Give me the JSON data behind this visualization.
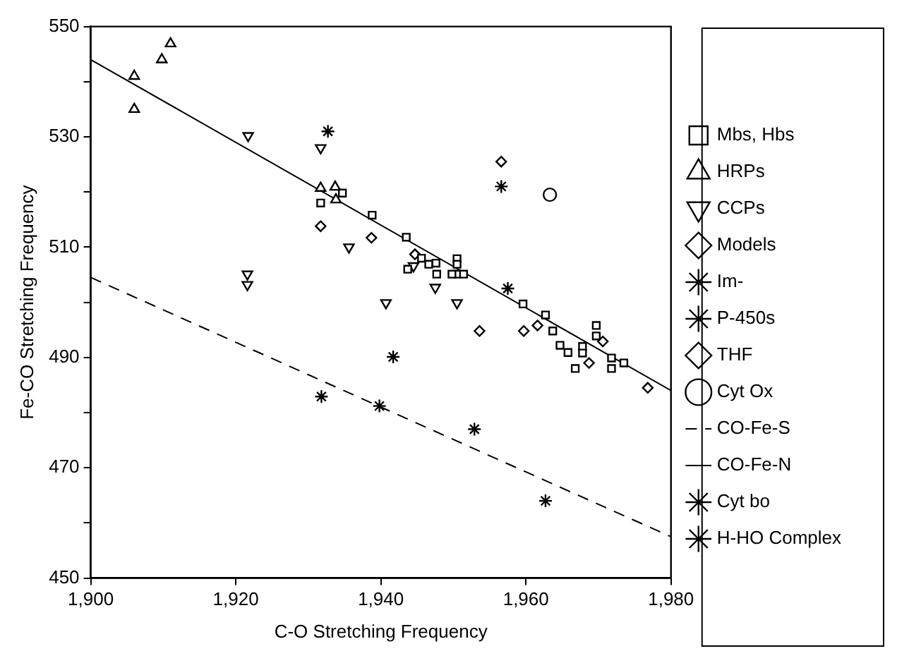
{
  "chart_data": {
    "type": "scatter",
    "xlabel": "C-O Stretching Frequency",
    "ylabel": "Fe-CO Stretching Frequency",
    "xlim": [
      1900,
      1980
    ],
    "xticks": [
      {
        "value": 1900,
        "label": "1,900"
      },
      {
        "value": 1920,
        "label": "1,920"
      },
      {
        "value": 1940,
        "label": "1,940"
      },
      {
        "value": 1960,
        "label": "1,960"
      },
      {
        "value": 1980,
        "label": "1,980"
      }
    ],
    "ylim": [
      450,
      550
    ],
    "yticks": [
      450,
      {
        "value": 460,
        "label": null
      },
      470,
      {
        "value": 480,
        "label": null
      },
      490,
      {
        "value": 500,
        "label": null
      },
      510,
      {
        "value": 520,
        "label": null
      },
      530,
      {
        "value": 540,
        "label": null
      },
      550
    ],
    "legend": "right",
    "series": [
      {
        "name": "Mbs, Hbs",
        "color": "#000000",
        "marker": "square",
        "x": [
          1934.7,
          1931.7,
          1938.8,
          1943.5,
          1943.7,
          1945.6,
          1946.6,
          1947.7,
          1947.6,
          1950.5,
          1950.5,
          1950.5,
          1951.4,
          1949.8,
          1959.6,
          1962.7,
          1963.7,
          1964.7,
          1965.8,
          1966.8,
          1967.8,
          1967.8,
          1969.7,
          1969.7,
          1971.8,
          1971.8,
          1973.5
        ],
        "values": [
          519.8,
          518,
          515.8,
          511.8,
          506,
          508,
          506.9,
          505.1,
          507.1,
          507.9,
          506.9,
          505.1,
          505.1,
          505.1,
          499.7,
          497.7,
          494.8,
          492.2,
          490.9,
          488,
          492,
          490.8,
          495.8,
          493.9,
          489.9,
          488,
          489
        ]
      },
      {
        "name": "HRPs",
        "color": "#000000",
        "marker": "triangle",
        "x": [
          1911,
          1909.8,
          1906,
          1906,
          1931.7,
          1933.7,
          1933.8
        ],
        "values": [
          546.9,
          544,
          541,
          535,
          520.7,
          520.9,
          518.6
        ]
      },
      {
        "name": "CCPs",
        "color": "#000000",
        "x": [
          1921.7,
          1921.6,
          1921.6,
          1931.7,
          1935.6,
          1940.7,
          1944.5,
          1947.5,
          1950.5
        ],
        "values": [
          530.2,
          505.1,
          503.2,
          528,
          510,
          499.9,
          506.6,
          502.7,
          499.9
        ]
      },
      {
        "name": "Models",
        "color": "#000000",
        "marker": "diamond",
        "x": [
          1931.7,
          1938.7,
          1944.7,
          1953.6,
          1959.7,
          1961.6,
          1968.7,
          1970.6,
          1976.8
        ],
        "values": [
          513.8,
          511.7,
          508.7,
          494.8,
          494.8,
          495.8,
          489,
          492.9,
          484.5
        ]
      },
      {
        "name": "Im-",
        "color": "#000000",
        "marker": "cross",
        "x": [
          1932.7,
          1941.7
        ],
        "values": [
          531,
          490.1
        ]
      },
      {
        "name": "P-450s",
        "color": "#000000",
        "marker": "cross",
        "x": [
          1931.8,
          1939.8,
          1952.9,
          1962.7
        ],
        "values": [
          482.9,
          481.2,
          477,
          464
        ]
      },
      {
        "name": "THF",
        "color": "#000000",
        "marker": "diamond",
        "x": [
          1956.6
        ],
        "values": [
          525.5
        ]
      },
      {
        "name": "Cyt Ox",
        "color": "#000000",
        "marker": "circle",
        "x": [
          1963.3
        ],
        "values": [
          519.5
        ]
      },
      {
        "name": "CO-Fe-S",
        "color": "#000000",
        "type": "line",
        "line_style": "dashed",
        "marker": "none",
        "x": [
          1900,
          1980
        ],
        "values": [
          504.5,
          457.5
        ]
      },
      {
        "name": "CO-Fe-N",
        "color": "#000000",
        "type": "line",
        "line_style": "solid",
        "marker": "none",
        "x": [
          1900,
          1980
        ],
        "values": [
          544,
          484
        ]
      },
      {
        "name": "Cyt bo",
        "color": "#000000",
        "marker": "cross",
        "x": [
          1956.6
        ],
        "values": [
          521
        ]
      },
      {
        "name": "H-HO Complex",
        "color": "#000000",
        "marker": "cross",
        "x": [
          1957.5
        ],
        "values": [
          502.5
        ]
      }
    ]
  }
}
